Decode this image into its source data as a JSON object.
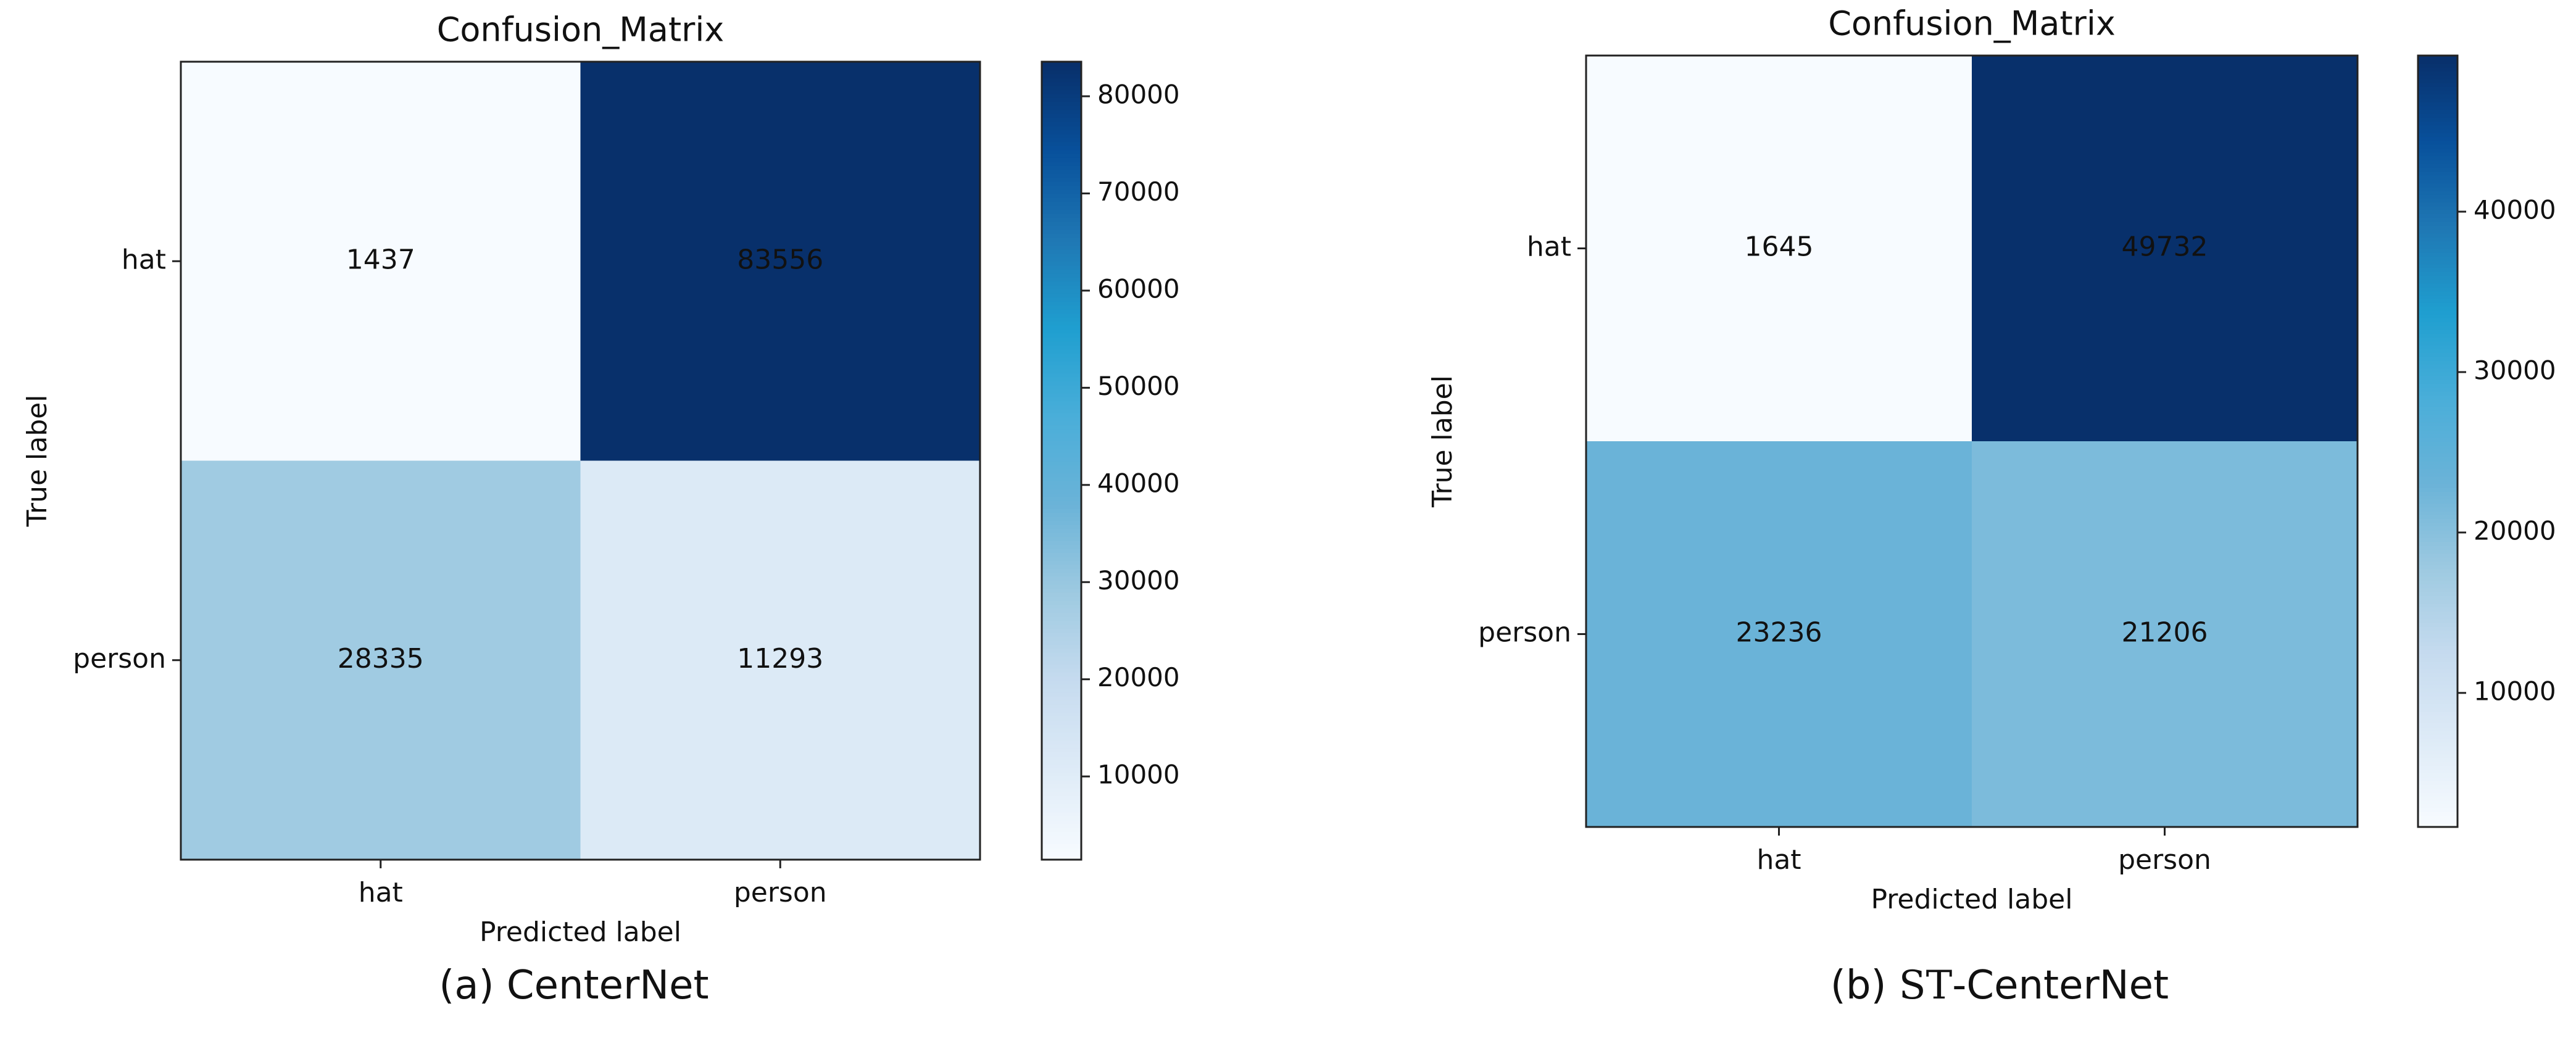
{
  "chart_data": [
    {
      "type": "heatmap",
      "title": "Confusion_Matrix",
      "xlabel": "Predicted label",
      "ylabel": "True label",
      "x_categories": [
        "hat",
        "person"
      ],
      "y_categories": [
        "hat",
        "person"
      ],
      "matrix": [
        [
          1437,
          83556
        ],
        [
          28335,
          11293
        ]
      ],
      "colormap": "Blues",
      "colorbar": {
        "min": 1437,
        "max": 83556,
        "ticks": [
          10000,
          20000,
          30000,
          40000,
          50000,
          60000,
          70000,
          80000
        ]
      },
      "caption": "(a) CenterNet"
    },
    {
      "type": "heatmap",
      "title": "Confusion_Matrix",
      "xlabel": "Predicted label",
      "ylabel": "True label",
      "x_categories": [
        "hat",
        "person"
      ],
      "y_categories": [
        "hat",
        "person"
      ],
      "matrix": [
        [
          1645,
          49732
        ],
        [
          23236,
          21206
        ]
      ],
      "colormap": "Blues",
      "colorbar": {
        "min": 1645,
        "max": 49732,
        "ticks": [
          10000,
          20000,
          30000,
          40000
        ]
      },
      "caption_prefix": "ST",
      "caption_rest": "-CenterNet",
      "caption_label": "(b) "
    }
  ],
  "colors": {
    "cmap_stops": [
      "#f7fbff",
      "#deebf7",
      "#c6dbef",
      "#9ecae1",
      "#6bb3d8",
      "#4aaed9",
      "#1f9fd0",
      "#1f78b4",
      "#08519c",
      "#08306b"
    ]
  }
}
